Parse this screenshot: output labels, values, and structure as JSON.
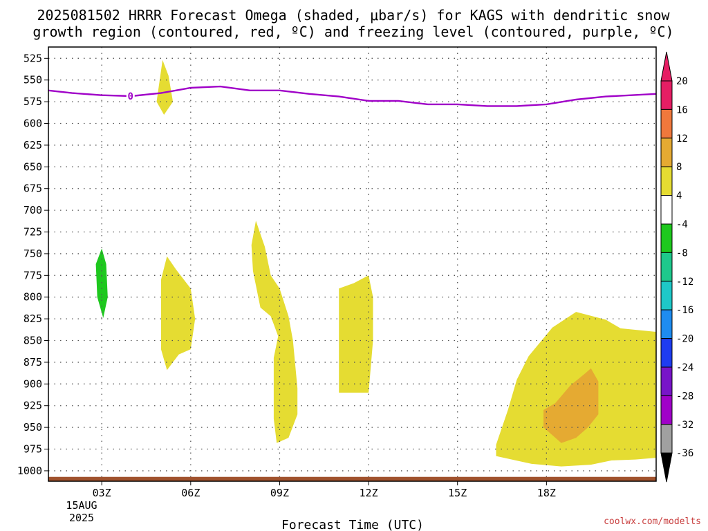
{
  "chart_data": {
    "type": "contour",
    "title_line1": "2025081502 HRRR Forecast Omega (shaded, μbar/s) for KAGS with dendritic snow",
    "title_line2": "growth region (contoured, red, ºC) and freezing level (contoured, purple, ºC)",
    "xlabel": "Forecast Time (UTC)",
    "ylabel": "",
    "credit": "coolwx.com/modelts",
    "x_range": [
      1.2,
      21.7
    ],
    "y_range": [
      1012,
      512
    ],
    "y_ticks": [
      525,
      550,
      575,
      600,
      625,
      650,
      675,
      700,
      725,
      750,
      775,
      800,
      825,
      850,
      875,
      900,
      925,
      950,
      975,
      1000
    ],
    "x_ticks": [
      {
        "x": 3,
        "label": "03Z"
      },
      {
        "x": 6,
        "label": "06Z"
      },
      {
        "x": 9,
        "label": "09Z"
      },
      {
        "x": 12,
        "label": "12Z"
      },
      {
        "x": 15,
        "label": "15Z"
      },
      {
        "x": 18,
        "label": "18Z"
      }
    ],
    "date_label_day": "15AUG",
    "date_label_year": "2025",
    "grid": true,
    "freezing_level": {
      "label": "0",
      "color": "#a000c8",
      "points": [
        [
          1.2,
          562
        ],
        [
          2,
          565
        ],
        [
          3,
          567.5
        ],
        [
          4,
          568.5
        ],
        [
          5,
          565
        ],
        [
          6,
          559
        ],
        [
          7,
          557.5
        ],
        [
          8,
          562
        ],
        [
          9,
          562
        ],
        [
          10,
          566
        ],
        [
          11,
          569
        ],
        [
          12,
          574
        ],
        [
          13,
          574
        ],
        [
          14,
          578
        ],
        [
          15,
          578
        ],
        [
          16,
          580
        ],
        [
          17,
          580
        ],
        [
          18,
          578
        ],
        [
          19,
          572.5
        ],
        [
          20,
          569
        ],
        [
          21.7,
          566
        ]
      ]
    },
    "ground_band": {
      "color": "#a0522d",
      "from": 1007,
      "to": 1012
    },
    "omega_regions": [
      {
        "class": 4,
        "color": "#e5dc32",
        "points": [
          [
            5.05,
            527
          ],
          [
            5.25,
            545
          ],
          [
            5.4,
            575
          ],
          [
            5.1,
            590
          ],
          [
            4.85,
            575
          ]
        ]
      },
      {
        "class": -8,
        "color": "#1ec81e",
        "points": [
          [
            3.0,
            744
          ],
          [
            3.15,
            762
          ],
          [
            3.2,
            800
          ],
          [
            3.05,
            824
          ],
          [
            2.85,
            800
          ],
          [
            2.8,
            762
          ]
        ]
      },
      {
        "class": 4,
        "color": "#e5dc32",
        "points": [
          [
            5.2,
            753
          ],
          [
            5.5,
            768
          ],
          [
            6.0,
            790
          ],
          [
            6.15,
            825
          ],
          [
            6.0,
            860
          ],
          [
            5.6,
            866
          ],
          [
            5.2,
            884
          ],
          [
            5.0,
            860
          ],
          [
            5.0,
            780
          ]
        ]
      },
      {
        "class": 4,
        "color": "#e5dc32",
        "points": [
          [
            8.2,
            712
          ],
          [
            8.5,
            742
          ],
          [
            8.7,
            775
          ],
          [
            9.0,
            790
          ],
          [
            9.3,
            822
          ],
          [
            9.45,
            850
          ],
          [
            9.6,
            905
          ],
          [
            9.6,
            935
          ],
          [
            9.3,
            962
          ],
          [
            8.9,
            968
          ],
          [
            8.8,
            940
          ],
          [
            8.8,
            870
          ],
          [
            8.95,
            845
          ],
          [
            8.7,
            822
          ],
          [
            8.35,
            812
          ],
          [
            8.1,
            770
          ],
          [
            8.05,
            740
          ]
        ]
      },
      {
        "class": 4,
        "color": "#e5dc32",
        "points": [
          [
            11.0,
            790
          ],
          [
            11.5,
            784
          ],
          [
            12.0,
            775
          ],
          [
            12.15,
            800
          ],
          [
            12.15,
            850
          ],
          [
            12.0,
            910
          ],
          [
            11.0,
            910
          ]
        ]
      },
      {
        "class": 4,
        "color": "#e5dc32",
        "points": [
          [
            17.4,
            868
          ],
          [
            18.2,
            835
          ],
          [
            19.0,
            817
          ],
          [
            20,
            826
          ],
          [
            20.5,
            836
          ],
          [
            21.7,
            840
          ],
          [
            21.7,
            985
          ],
          [
            21,
            987
          ],
          [
            20.2,
            988
          ],
          [
            19.5,
            993
          ],
          [
            18.5,
            995
          ],
          [
            17.5,
            992
          ],
          [
            16.3,
            983
          ],
          [
            16.3,
            970
          ],
          [
            16.7,
            930
          ],
          [
            17.0,
            895
          ]
        ]
      },
      {
        "class": 8,
        "color": "#e5aa32",
        "points": [
          [
            18.3,
            922
          ],
          [
            18.8,
            902
          ],
          [
            19.3,
            888
          ],
          [
            19.5,
            882
          ],
          [
            19.75,
            897
          ],
          [
            19.75,
            935
          ],
          [
            19.4,
            950
          ],
          [
            19.0,
            962
          ],
          [
            18.5,
            968
          ],
          [
            17.9,
            950
          ],
          [
            17.9,
            930
          ]
        ]
      }
    ],
    "colorbar": [
      {
        "label": "20",
        "color": "#e61e64"
      },
      {
        "label": "16",
        "color": "#f0783c"
      },
      {
        "label": "12",
        "color": "#e5aa32"
      },
      {
        "label": "8",
        "color": "#e5dc32"
      },
      {
        "label": "4",
        "color": "#ffffff"
      },
      {
        "label": "-4",
        "color": "#1ec81e"
      },
      {
        "label": "-8",
        "color": "#1ec88c"
      },
      {
        "label": "-12",
        "color": "#1ec8c8"
      },
      {
        "label": "-16",
        "color": "#1e8cf0"
      },
      {
        "label": "-20",
        "color": "#1e3cf0"
      },
      {
        "label": "-24",
        "color": "#7814c8"
      },
      {
        "label": "-28",
        "color": "#a000c8"
      },
      {
        "label": "-32",
        "color": "#a0a0a0"
      },
      {
        "label": "-36",
        "color": "#000000"
      }
    ],
    "colorbar_top_color": "#e61e64"
  }
}
